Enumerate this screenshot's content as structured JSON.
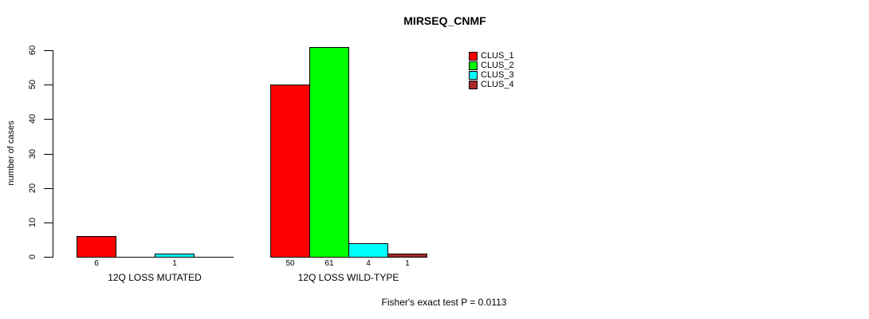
{
  "chart_data": {
    "type": "bar",
    "title": "MIRSEQ_CNMF",
    "ylabel": "number of cases",
    "xlabel": "",
    "ylim": [
      0,
      60
    ],
    "yticks": [
      0,
      10,
      20,
      30,
      40,
      50,
      60
    ],
    "grid": false,
    "legend_position": "top-right",
    "categories": [
      "12Q LOSS MUTATED",
      "12Q LOSS WILD-TYPE"
    ],
    "series": [
      {
        "name": "CLUS_1",
        "color": "#FF0000",
        "values": [
          6,
          50
        ]
      },
      {
        "name": "CLUS_2",
        "color": "#00FF00",
        "values": [
          0,
          61
        ]
      },
      {
        "name": "CLUS_3",
        "color": "#00FFFF",
        "values": [
          1,
          4
        ]
      },
      {
        "name": "CLUS_4",
        "color": "#A52A2A",
        "values": [
          0,
          1
        ]
      }
    ],
    "value_labels": "shown under each nonzero bar",
    "annotation": "Fisher's exact test P = 0.0113",
    "axis_color": "#000000",
    "background_color": "#FFFFFF"
  }
}
